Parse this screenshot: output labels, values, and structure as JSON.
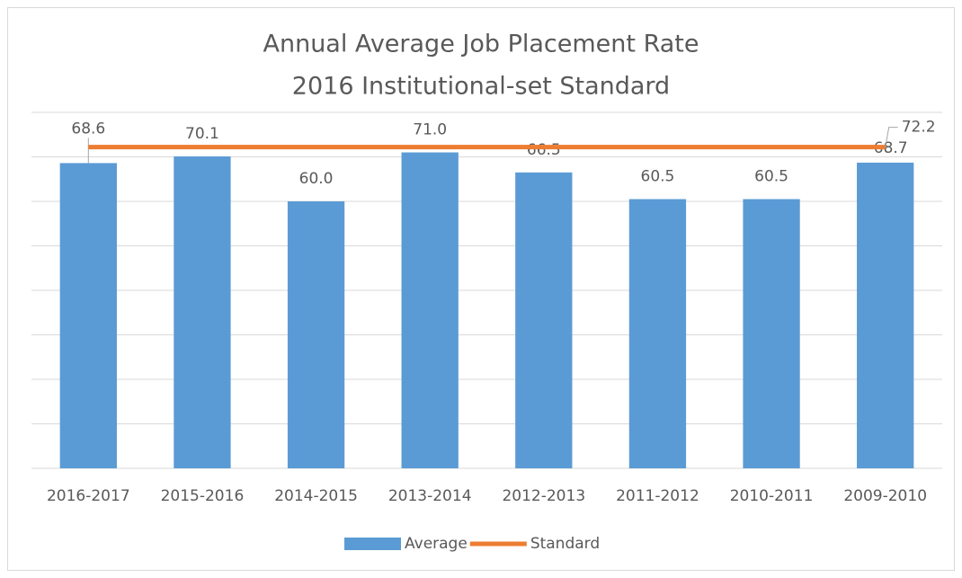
{
  "chart_data": {
    "type": "bar",
    "title": [
      "Annual Average Job Placement Rate",
      "2016 Institutional-set Standard"
    ],
    "categories": [
      "2016-2017",
      "2015-2016",
      "2014-2015",
      "2013-2014",
      "2012-2013",
      "2011-2012",
      "2010-2011",
      "2009-2010"
    ],
    "series": [
      {
        "name": "Average",
        "type": "bar",
        "color": "#5b9bd5",
        "values": [
          68.6,
          70.1,
          60.0,
          71.0,
          66.5,
          60.5,
          60.5,
          68.7
        ],
        "value_labels": [
          "68.6",
          "70.1",
          "60.0",
          "71.0",
          "66.5",
          "60.5",
          "60.5",
          "68.7"
        ]
      },
      {
        "name": "Standard",
        "type": "line",
        "color": "#ed7d31",
        "values": [
          72.2,
          72.2,
          72.2,
          72.2,
          72.2,
          72.2,
          72.2,
          72.2
        ],
        "value_labels": [
          null,
          null,
          null,
          null,
          null,
          null,
          null,
          "72.2"
        ]
      }
    ],
    "ylim": [
      0,
      80
    ],
    "yticks": [
      0,
      10,
      20,
      30,
      40,
      50,
      60,
      70,
      80
    ],
    "grid": true,
    "legend": "bottom"
  }
}
